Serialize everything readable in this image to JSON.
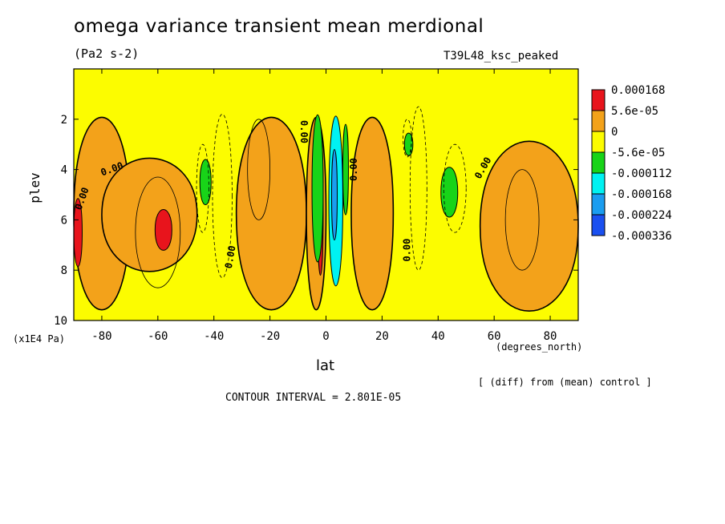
{
  "chart_data": {
    "type": "heatmap",
    "title": "omega variance transient mean merdional",
    "units": "(Pa2 s-2)",
    "run_label": "T39L48_ksc_peaked",
    "xlabel": "lat",
    "xunits": "(degrees_north)",
    "ylabel": "plev",
    "yunits": "(x1E4 Pa)",
    "xlim": [
      -90,
      90
    ],
    "ylim": [
      10,
      0
    ],
    "xticks": [
      -80,
      -60,
      -40,
      -20,
      0,
      20,
      40,
      60,
      80
    ],
    "xtick_labels": [
      "-80",
      "-60",
      "-40",
      "-20",
      "0",
      "20",
      "40",
      "60",
      "80"
    ],
    "yticks": [
      2,
      4,
      6,
      8,
      10
    ],
    "ytick_labels": [
      "2",
      "4",
      "6",
      "8",
      "10"
    ],
    "contour_label": "0.00",
    "contour_interval_text": "CONTOUR INTERVAL = 2.801E-05",
    "note": "[ (diff) from (mean) control ]",
    "legend": {
      "placement": "right",
      "levels": [
        "0.000168",
        "5.6e-05",
        "0",
        "-5.6e-05",
        "-0.000112",
        "-0.000168",
        "-0.000224",
        "-0.000336"
      ],
      "colors": [
        "#e8141c",
        "#f3a21a",
        "#fcfc00",
        "#18d418",
        "#00f2f2",
        "#1a9df0",
        "#1a50f0"
      ]
    },
    "fields": [
      {
        "type": "orange",
        "lat": [
          -90,
          -70
        ],
        "plev": [
          1.5,
          10
        ]
      },
      {
        "type": "orange",
        "lat": [
          -80,
          -46
        ],
        "plev": [
          3.3,
          8.3
        ]
      },
      {
        "type": "red",
        "lat": [
          -61,
          -55
        ],
        "plev": [
          5.5,
          7.3
        ]
      },
      {
        "type": "red",
        "lat": [
          -90,
          -87
        ],
        "plev": [
          5.0,
          8.0
        ]
      },
      {
        "type": "orange",
        "lat": [
          -32,
          -7
        ],
        "plev": [
          1.5,
          10
        ]
      },
      {
        "type": "orange",
        "lat": [
          -7,
          0
        ],
        "plev": [
          1.5,
          10
        ]
      },
      {
        "type": "red",
        "lat": [
          -3,
          -1
        ],
        "plev": [
          2.5,
          8.5
        ]
      },
      {
        "type": "green",
        "lat": [
          -5,
          -1
        ],
        "plev": [
          1.5,
          8.0
        ]
      },
      {
        "type": "cyan",
        "lat": [
          1,
          6
        ],
        "plev": [
          1.5,
          9.0
        ]
      },
      {
        "type": "blue",
        "lat": [
          2,
          4
        ],
        "plev": [
          3.0,
          7.0
        ]
      },
      {
        "type": "green",
        "lat": [
          6,
          8
        ],
        "plev": [
          2.0,
          6.0
        ]
      },
      {
        "type": "orange",
        "lat": [
          9,
          24
        ],
        "plev": [
          1.5,
          10
        ]
      },
      {
        "type": "green",
        "lat": [
          -45,
          -41
        ],
        "plev": [
          3.5,
          5.5
        ]
      },
      {
        "type": "green",
        "lat": [
          28,
          31
        ],
        "plev": [
          2.5,
          3.5
        ]
      },
      {
        "type": "green",
        "lat": [
          41,
          47
        ],
        "plev": [
          3.8,
          6.0
        ]
      },
      {
        "type": "orange",
        "lat": [
          55,
          90
        ],
        "plev": [
          2.5,
          10
        ]
      }
    ]
  }
}
